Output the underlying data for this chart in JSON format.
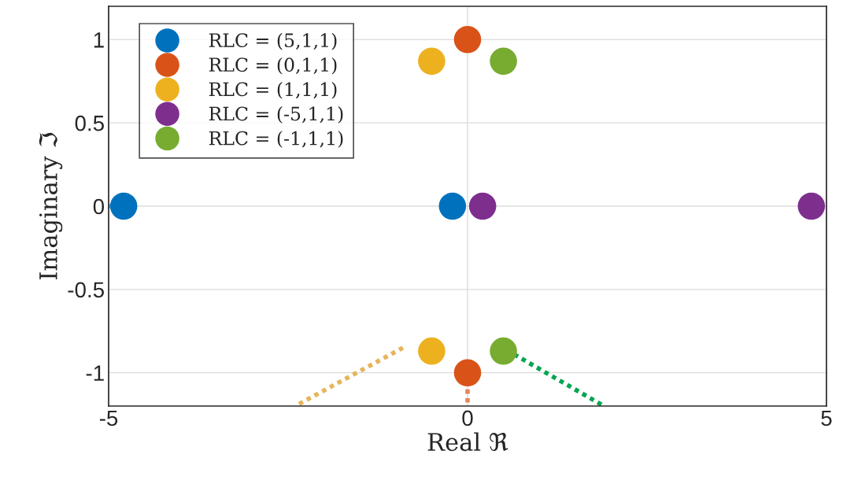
{
  "chart_data": {
    "type": "scatter",
    "xlabel": "Real ℜ",
    "ylabel": "Imaginary ℑ",
    "series": [
      {
        "name": "RLC = (5,1,1)",
        "color": "#0072bd",
        "x": [
          -4.79,
          -0.21
        ],
        "values": [
          0,
          0
        ]
      },
      {
        "name": "RLC = (0,1,1)",
        "color": "#d95319",
        "x": [
          0,
          0
        ],
        "values": [
          1,
          -1
        ]
      },
      {
        "name": "RLC = (1,1,1)",
        "color": "#edb120",
        "x": [
          -0.5,
          -0.5
        ],
        "values": [
          0.87,
          -0.87
        ]
      },
      {
        "name": "RLC = (-5,1,1)",
        "color": "#7e2f8e",
        "x": [
          0.21,
          4.79
        ],
        "values": [
          0,
          0
        ]
      },
      {
        "name": "RLC = (-1,1,1)",
        "color": "#77ac30",
        "x": [
          0.5,
          0.5
        ],
        "values": [
          0.87,
          -0.87
        ]
      },
      {
        "type": "line",
        "line_style": "dotted",
        "marker": "none",
        "color": "#5dade2",
        "x": [
          -5,
          -4.79
        ],
        "values": [
          0,
          0
        ]
      },
      {
        "type": "line",
        "line_style": "dotted",
        "marker": "none",
        "color": "#e8845a",
        "x": [
          0,
          0
        ],
        "values": [
          -1.1,
          -1.2
        ]
      },
      {
        "type": "line",
        "line_style": "dotted",
        "marker": "none",
        "color": "#e5b55a",
        "x": [
          -0.9,
          -2.4
        ],
        "values": [
          -0.85,
          -1.2
        ]
      },
      {
        "type": "line",
        "line_style": "dotted",
        "marker": "none",
        "color": "#00a550",
        "x": [
          0.65,
          1.9
        ],
        "values": [
          -0.89,
          -1.2
        ]
      }
    ],
    "marker": "circle",
    "legend": "top left",
    "grid": true,
    "xlim": [
      -5,
      5
    ],
    "ylim": [
      -1.2,
      1.2
    ],
    "xticks": [
      -5,
      0,
      5
    ],
    "yticks": [
      -1,
      -0.5,
      0,
      0.5,
      1
    ]
  }
}
